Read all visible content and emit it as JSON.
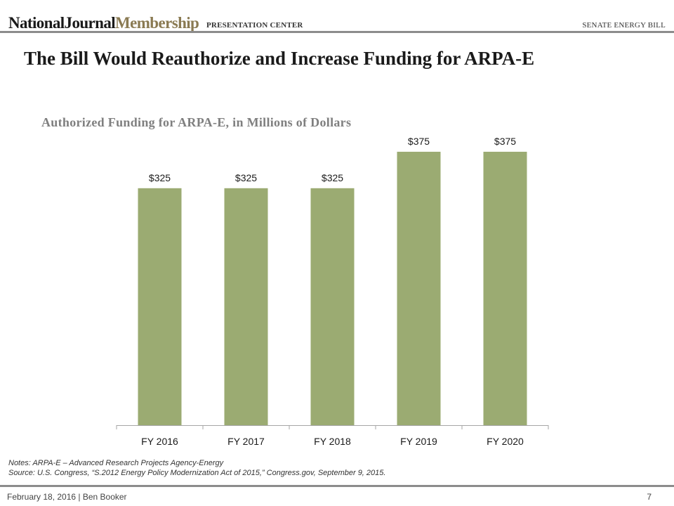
{
  "header": {
    "logo_part1": "NationalJournal",
    "logo_part2": "Membership",
    "section": "PRESENTATION CENTER",
    "topic": "SENATE ENERGY BILL"
  },
  "slide": {
    "title": "The Bill Would Reauthorize and Increase Funding for ARPA-E"
  },
  "chart_data": {
    "type": "bar",
    "title": "Authorized Funding for ARPA-E, in Millions of Dollars",
    "categories": [
      "FY 2016",
      "FY 2017",
      "FY 2018",
      "FY 2019",
      "FY 2020"
    ],
    "values": [
      325,
      325,
      325,
      375,
      375
    ],
    "data_labels": [
      "$325",
      "$325",
      "$325",
      "$375",
      "$375"
    ],
    "bar_color": "#9bab72",
    "ylim": [
      0,
      400
    ],
    "grid": false,
    "legend": "none",
    "xlabel": "",
    "ylabel": ""
  },
  "notes": {
    "line1": "Notes: ARPA-E – Advanced Research Projects Agency-Energy",
    "line2": "Source: U.S. Congress, “S.2012 Energy Policy Modernization  Act of 2015,” Congress.gov,  September 9, 2015."
  },
  "footer": {
    "left": "February  18, 2016  |  Ben Booker",
    "page": "7"
  }
}
